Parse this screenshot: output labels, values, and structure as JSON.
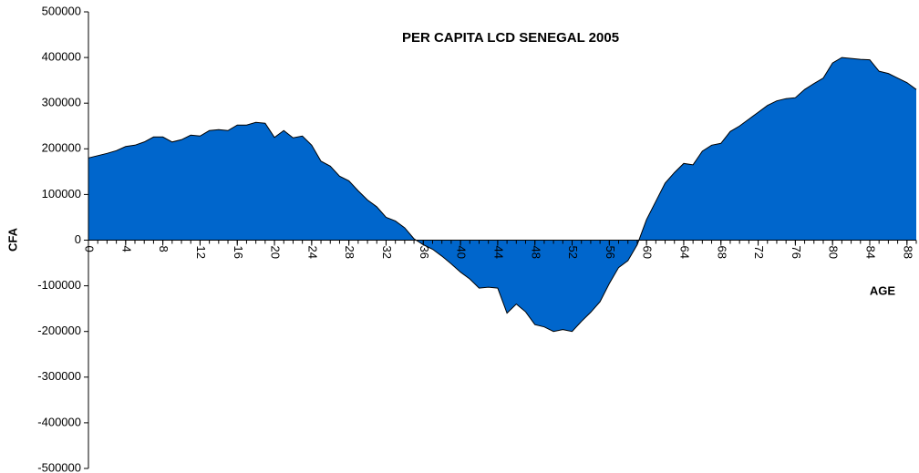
{
  "chart_data": {
    "type": "area",
    "title": "PER CAPITA LCD SENEGAL 2005",
    "x_label": "AGE",
    "y_label": "CFA",
    "x": [
      0,
      1,
      2,
      3,
      4,
      5,
      6,
      7,
      8,
      9,
      10,
      11,
      12,
      13,
      14,
      15,
      16,
      17,
      18,
      19,
      20,
      21,
      22,
      23,
      24,
      25,
      26,
      27,
      28,
      29,
      30,
      31,
      32,
      33,
      34,
      35,
      36,
      37,
      38,
      39,
      40,
      41,
      42,
      43,
      44,
      45,
      46,
      47,
      48,
      49,
      50,
      51,
      52,
      53,
      54,
      55,
      56,
      57,
      58,
      59,
      60,
      61,
      62,
      63,
      64,
      65,
      66,
      67,
      68,
      69,
      70,
      71,
      72,
      73,
      74,
      75,
      76,
      77,
      78,
      79,
      80,
      81,
      82,
      83,
      84,
      85,
      86,
      87,
      88,
      89
    ],
    "values": [
      180000,
      185000,
      190000,
      196000,
      205000,
      208000,
      215000,
      226000,
      226000,
      215000,
      220000,
      230000,
      228000,
      240000,
      242000,
      240000,
      252000,
      252000,
      258000,
      256000,
      225000,
      240000,
      224000,
      228000,
      208000,
      173000,
      162000,
      140000,
      130000,
      108000,
      88000,
      73000,
      50000,
      42000,
      27000,
      3000,
      -10000,
      -20000,
      -35000,
      -52000,
      -70000,
      -85000,
      -105000,
      -103000,
      -105000,
      -160000,
      -140000,
      -157000,
      -185000,
      -190000,
      -200000,
      -196000,
      -200000,
      -178000,
      -158000,
      -135000,
      -95000,
      -60000,
      -45000,
      -10000,
      45000,
      85000,
      125000,
      148000,
      168000,
      165000,
      195000,
      208000,
      212000,
      238000,
      250000,
      265000,
      280000,
      295000,
      305000,
      310000,
      312000,
      330000,
      343000,
      355000,
      388000,
      400000,
      398000,
      396000,
      395000,
      370000,
      365000,
      355000,
      345000,
      330000
    ],
    "color": "#0066cc",
    "xlim": [
      0,
      89
    ],
    "xticks": [
      0,
      4,
      8,
      12,
      16,
      20,
      24,
      28,
      32,
      36,
      40,
      44,
      48,
      52,
      56,
      60,
      64,
      68,
      72,
      76,
      80,
      84,
      88
    ],
    "ylim": [
      -500000,
      500000
    ],
    "yticks": [
      -500000,
      -400000,
      -300000,
      -200000,
      -100000,
      0,
      100000,
      200000,
      300000,
      400000,
      500000
    ]
  }
}
